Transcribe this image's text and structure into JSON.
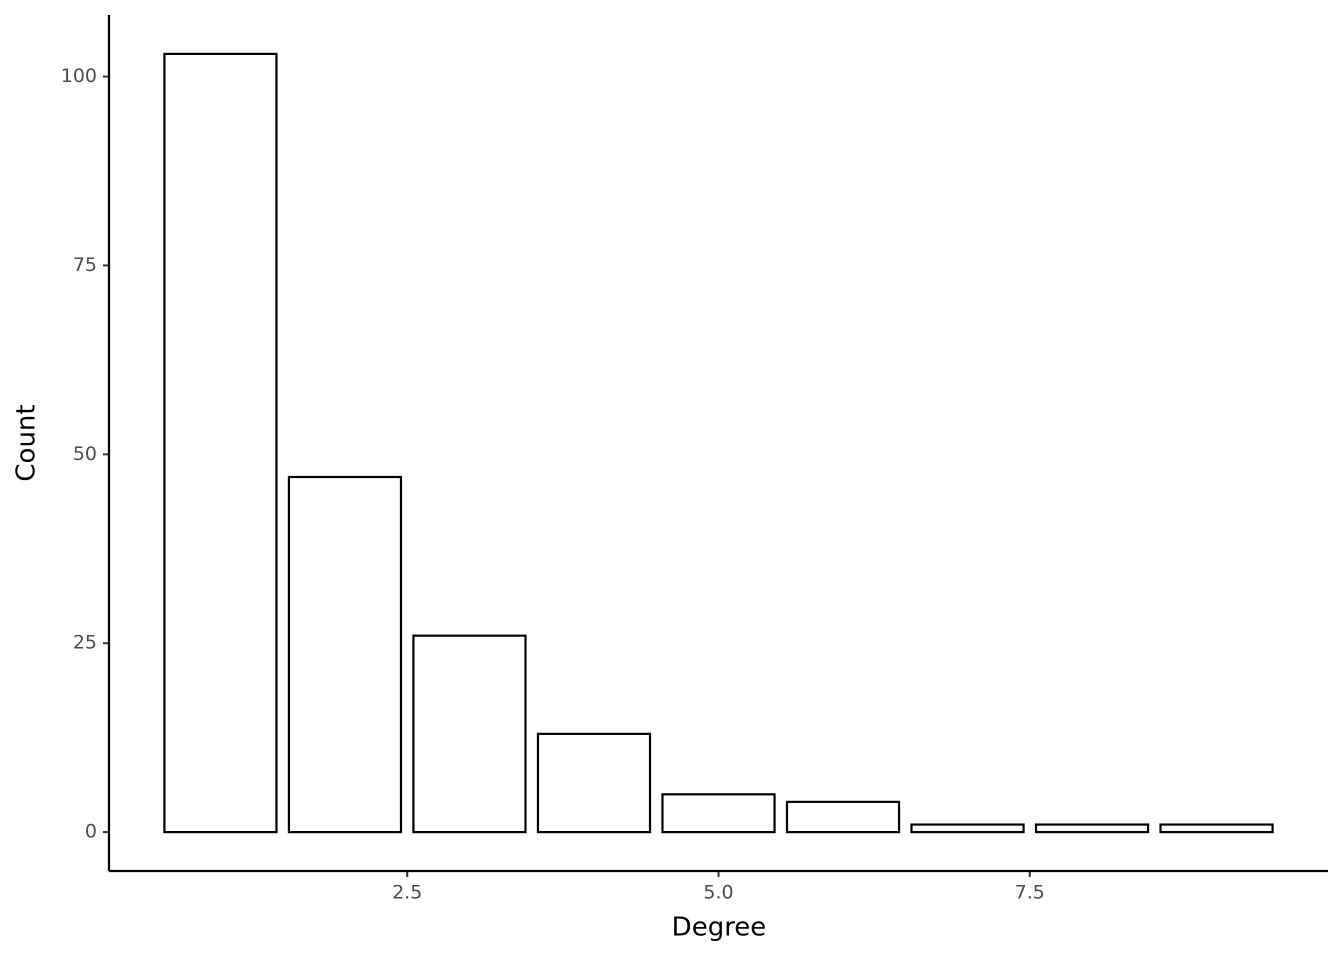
{
  "chart_data": {
    "type": "bar",
    "x_label": "Degree",
    "y_label": "Count",
    "x": [
      1,
      2,
      3,
      4,
      5,
      6,
      7,
      8,
      9
    ],
    "values": [
      103,
      47,
      26,
      13,
      5,
      4,
      1,
      1,
      1
    ],
    "color": "#ffffff",
    "edge_color": "#000000",
    "xlim": [
      0.105,
      9.895
    ],
    "ylim": [
      -5.15,
      108.15
    ],
    "xticks": [
      2.5,
      {
        "value": 5,
        "label": "5.0"
      },
      7.5
    ],
    "yticks": [
      0,
      25,
      50,
      75,
      100
    ],
    "grid": false
  }
}
